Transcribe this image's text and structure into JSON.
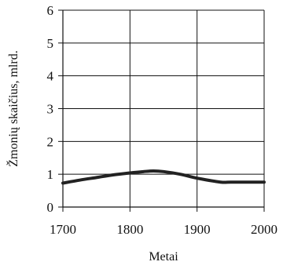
{
  "chart_data": {
    "type": "line",
    "xlabel": "Metai",
    "ylabel": "Žmonių skaičius, mlrd.",
    "xlim": [
      1700,
      2000
    ],
    "ylim": [
      0,
      6
    ],
    "x_ticks": [
      1700,
      1800,
      1900,
      2000
    ],
    "y_ticks": [
      0,
      1,
      2,
      3,
      4,
      5,
      6
    ],
    "grid": true,
    "series": [
      {
        "color": "#222222",
        "x": [
          1700,
          1725,
          1750,
          1775,
          1800,
          1820,
          1835,
          1850,
          1875,
          1900,
          1935,
          1950,
          1975,
          2000
        ],
        "y": [
          0.73,
          0.82,
          0.9,
          0.98,
          1.04,
          1.08,
          1.1,
          1.08,
          1.0,
          0.88,
          0.76,
          0.76,
          0.76,
          0.76
        ]
      }
    ]
  }
}
